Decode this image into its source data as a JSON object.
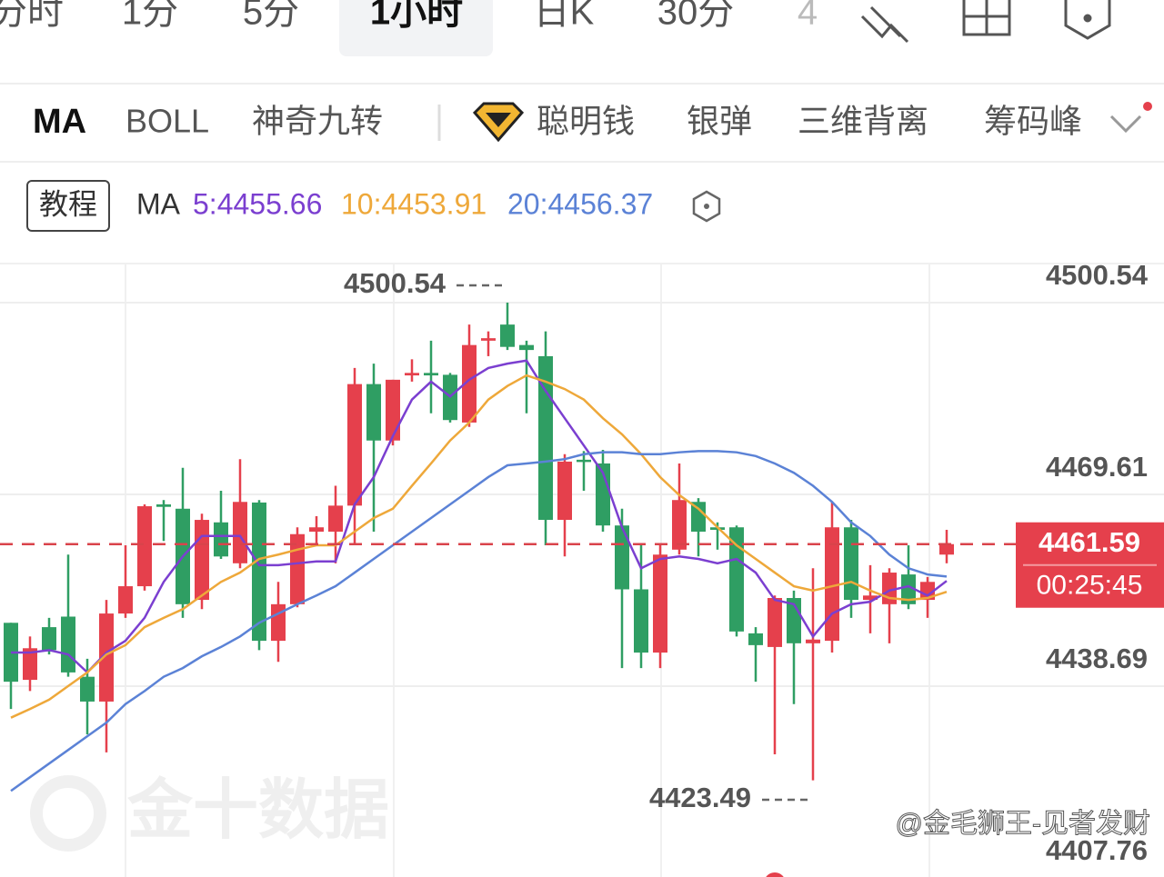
{
  "tabs": [
    "分时",
    "1分",
    "5分",
    "1小时",
    "日K",
    "30分",
    "4"
  ],
  "indicators": [
    "MA",
    "BOLL",
    "神奇九转",
    "聪明钱",
    "银弹",
    "三维背离",
    "筹码峰"
  ],
  "tutorial": "教程",
  "watermark": "金十数据",
  "credit": "@金毛狮王-见者发财",
  "chart_data": {
    "type": "candlestick",
    "indicator_label": "MA",
    "open": [
      4448.9,
      4439.7,
      4448.2,
      4449.9,
      4440.2,
      4436.2,
      4450.4,
      4454.8,
      4468.0,
      4467.3,
      4452.6,
      4465.1,
      4458.5,
      4468.3,
      4446.0,
      4451.9,
      4463.6,
      4463.6,
      4467.8,
      4487.4,
      4478.3,
      4488.8,
      4489.2,
      4488.9,
      4481.2,
      4494.4,
      4497.0,
      4493.7,
      4491.9,
      4465.5,
      4475.2,
      4474.6,
      4464.6,
      4454.3,
      4444.1,
      4460.7,
      4468.4,
      4464.3,
      4464.3,
      4447.2,
      4445.0,
      4452.9,
      4445.6,
      4446.0,
      4464.3,
      4452.6,
      4451.9,
      4456.7,
      4452.6,
      4459.9
    ],
    "high": [
      4448.9,
      4446.7,
      4449.7,
      4459.9,
      4443.1,
      4452.6,
      4461.4,
      4468.0,
      4468.7,
      4473.9,
      4466.5,
      4470.2,
      4475.3,
      4468.7,
      4455.5,
      4464.3,
      4466.1,
      4471.0,
      4490.0,
      4490.7,
      4488.1,
      4491.4,
      4494.4,
      4489.2,
      4497.0,
      4495.9,
      4500.54,
      4494.4,
      4495.9,
      4476.1,
      4476.6,
      4476.8,
      4467.3,
      4461.4,
      4461.4,
      4474.6,
      4469.0,
      4465.1,
      4464.6,
      4448.2,
      4453.3,
      4454.1,
      4457.7,
      4468.4,
      4465.5,
      4458.2,
      4457.7,
      4461.4,
      4456.3,
      4463.9
    ],
    "low": [
      4435.0,
      4437.9,
      4443.8,
      4440.2,
      4430.9,
      4428.0,
      4449.7,
      4454.1,
      4462.1,
      4449.7,
      4451.1,
      4459.2,
      4457.7,
      4444.5,
      4442.6,
      4451.4,
      4461.4,
      4458.5,
      4461.4,
      4463.6,
      4477.5,
      4487.8,
      4482.7,
      4481.2,
      4480.5,
      4491.9,
      4492.9,
      4482.7,
      4461.4,
      4459.6,
      4470.2,
      4463.6,
      4441.6,
      4441.6,
      4441.6,
      4459.9,
      4459.6,
      4460.7,
      4446.7,
      4439.4,
      4427.7,
      4435.8,
      4423.49,
      4444.1,
      4449.7,
      4447.2,
      4445.6,
      4451.1,
      4449.7,
      4458.5
    ],
    "close": [
      4439.4,
      4444.8,
      4444.5,
      4440.9,
      4436.2,
      4450.4,
      4454.8,
      4467.7,
      4467.6,
      4451.9,
      4465.5,
      4459.6,
      4468.4,
      4446.0,
      4451.9,
      4463.2,
      4464.3,
      4467.8,
      4487.4,
      4478.3,
      4488.1,
      4489.2,
      4488.8,
      4481.6,
      4493.7,
      4494.8,
      4493.4,
      4492.9,
      4465.5,
      4474.9,
      4474.9,
      4464.6,
      4454.3,
      4444.1,
      4459.9,
      4468.7,
      4463.6,
      4463.9,
      4447.5,
      4445.3,
      4452.9,
      4445.6,
      4446.2,
      4464.3,
      4452.6,
      4453.3,
      4457.0,
      4451.9,
      4455.5,
      4461.59
    ],
    "series": [
      {
        "name": "5:4455.66",
        "color": "#7b3fd0",
        "values": [
          4444.1,
          4444.1,
          4444.5,
          4443.8,
          4440.9,
          4444.1,
          4446.0,
          4449.7,
          4455.5,
          4459.6,
          4462.9,
          4462.9,
          4462.9,
          4458.2,
          4458.2,
          4458.5,
          4458.8,
          4458.8,
          4468.0,
          4472.4,
          4479.0,
          4484.9,
          4487.8,
          4485.4,
          4488.1,
          4490.0,
          4490.7,
          4491.2,
          4486.3,
          4481.9,
          4477.5,
          4473.1,
          4464.3,
          4457.7,
          4459.2,
          4459.6,
          4459.2,
          4458.5,
          4459.2,
          4457.0,
          4452.6,
          4451.9,
          4446.7,
          4450.4,
          4451.9,
          4452.3,
          4454.1,
          4454.8,
          4453.3,
          4455.66
        ]
      },
      {
        "name": "10:4453.91",
        "color": "#eea83a",
        "values": [
          4433.6,
          4435.0,
          4436.5,
          4438.7,
          4440.9,
          4443.8,
          4445.3,
          4448.2,
          4449.7,
          4451.1,
          4453.3,
          4455.5,
          4457.0,
          4459.2,
          4459.9,
          4460.7,
          4461.4,
          4461.4,
          4463.6,
          4465.8,
          4467.3,
          4471.0,
          4474.6,
          4478.3,
          4481.2,
          4484.9,
          4487.1,
          4488.8,
          4487.8,
          4486.6,
          4484.9,
          4481.9,
          4479.3,
          4476.1,
          4472.4,
          4469.5,
          4467.3,
          4464.3,
          4461.4,
          4459.2,
          4457.0,
          4454.8,
          4454.1,
          4454.8,
          4455.5,
          4454.1,
          4452.9,
          4452.6,
          4452.9,
          4453.91
        ]
      },
      {
        "name": "20:4456.37",
        "color": "#5b82d6",
        "values": [
          4421.8,
          4424.0,
          4426.2,
          4428.4,
          4430.6,
          4432.8,
          4435.8,
          4437.9,
          4440.2,
          4441.6,
          4443.5,
          4445.0,
          4446.7,
          4448.9,
          4450.4,
          4451.9,
          4453.3,
          4454.8,
          4457.0,
          4459.2,
          4461.4,
          4463.6,
          4465.8,
          4468.0,
          4470.2,
          4472.4,
          4474.3,
          4474.6,
          4474.9,
          4475.3,
          4476.1,
          4476.4,
          4476.4,
          4476.1,
          4476.1,
          4476.4,
          4476.6,
          4476.6,
          4476.4,
          4475.8,
          4474.6,
          4473.1,
          4471.0,
          4468.4,
          4465.1,
          4462.9,
          4459.9,
          4457.7,
          4456.7,
          4456.37
        ]
      }
    ],
    "ylim": [
      4407.76,
      4506.84
    ],
    "yticks": [
      4407.76,
      4438.69,
      4469.61,
      4500.54
    ],
    "grid": true,
    "up_color": "#e5404c",
    "down_color": "#2f9e63",
    "current_price": 4461.59,
    "countdown": "00:25:45",
    "max_label": 4500.54,
    "min_label": 4423.49
  }
}
